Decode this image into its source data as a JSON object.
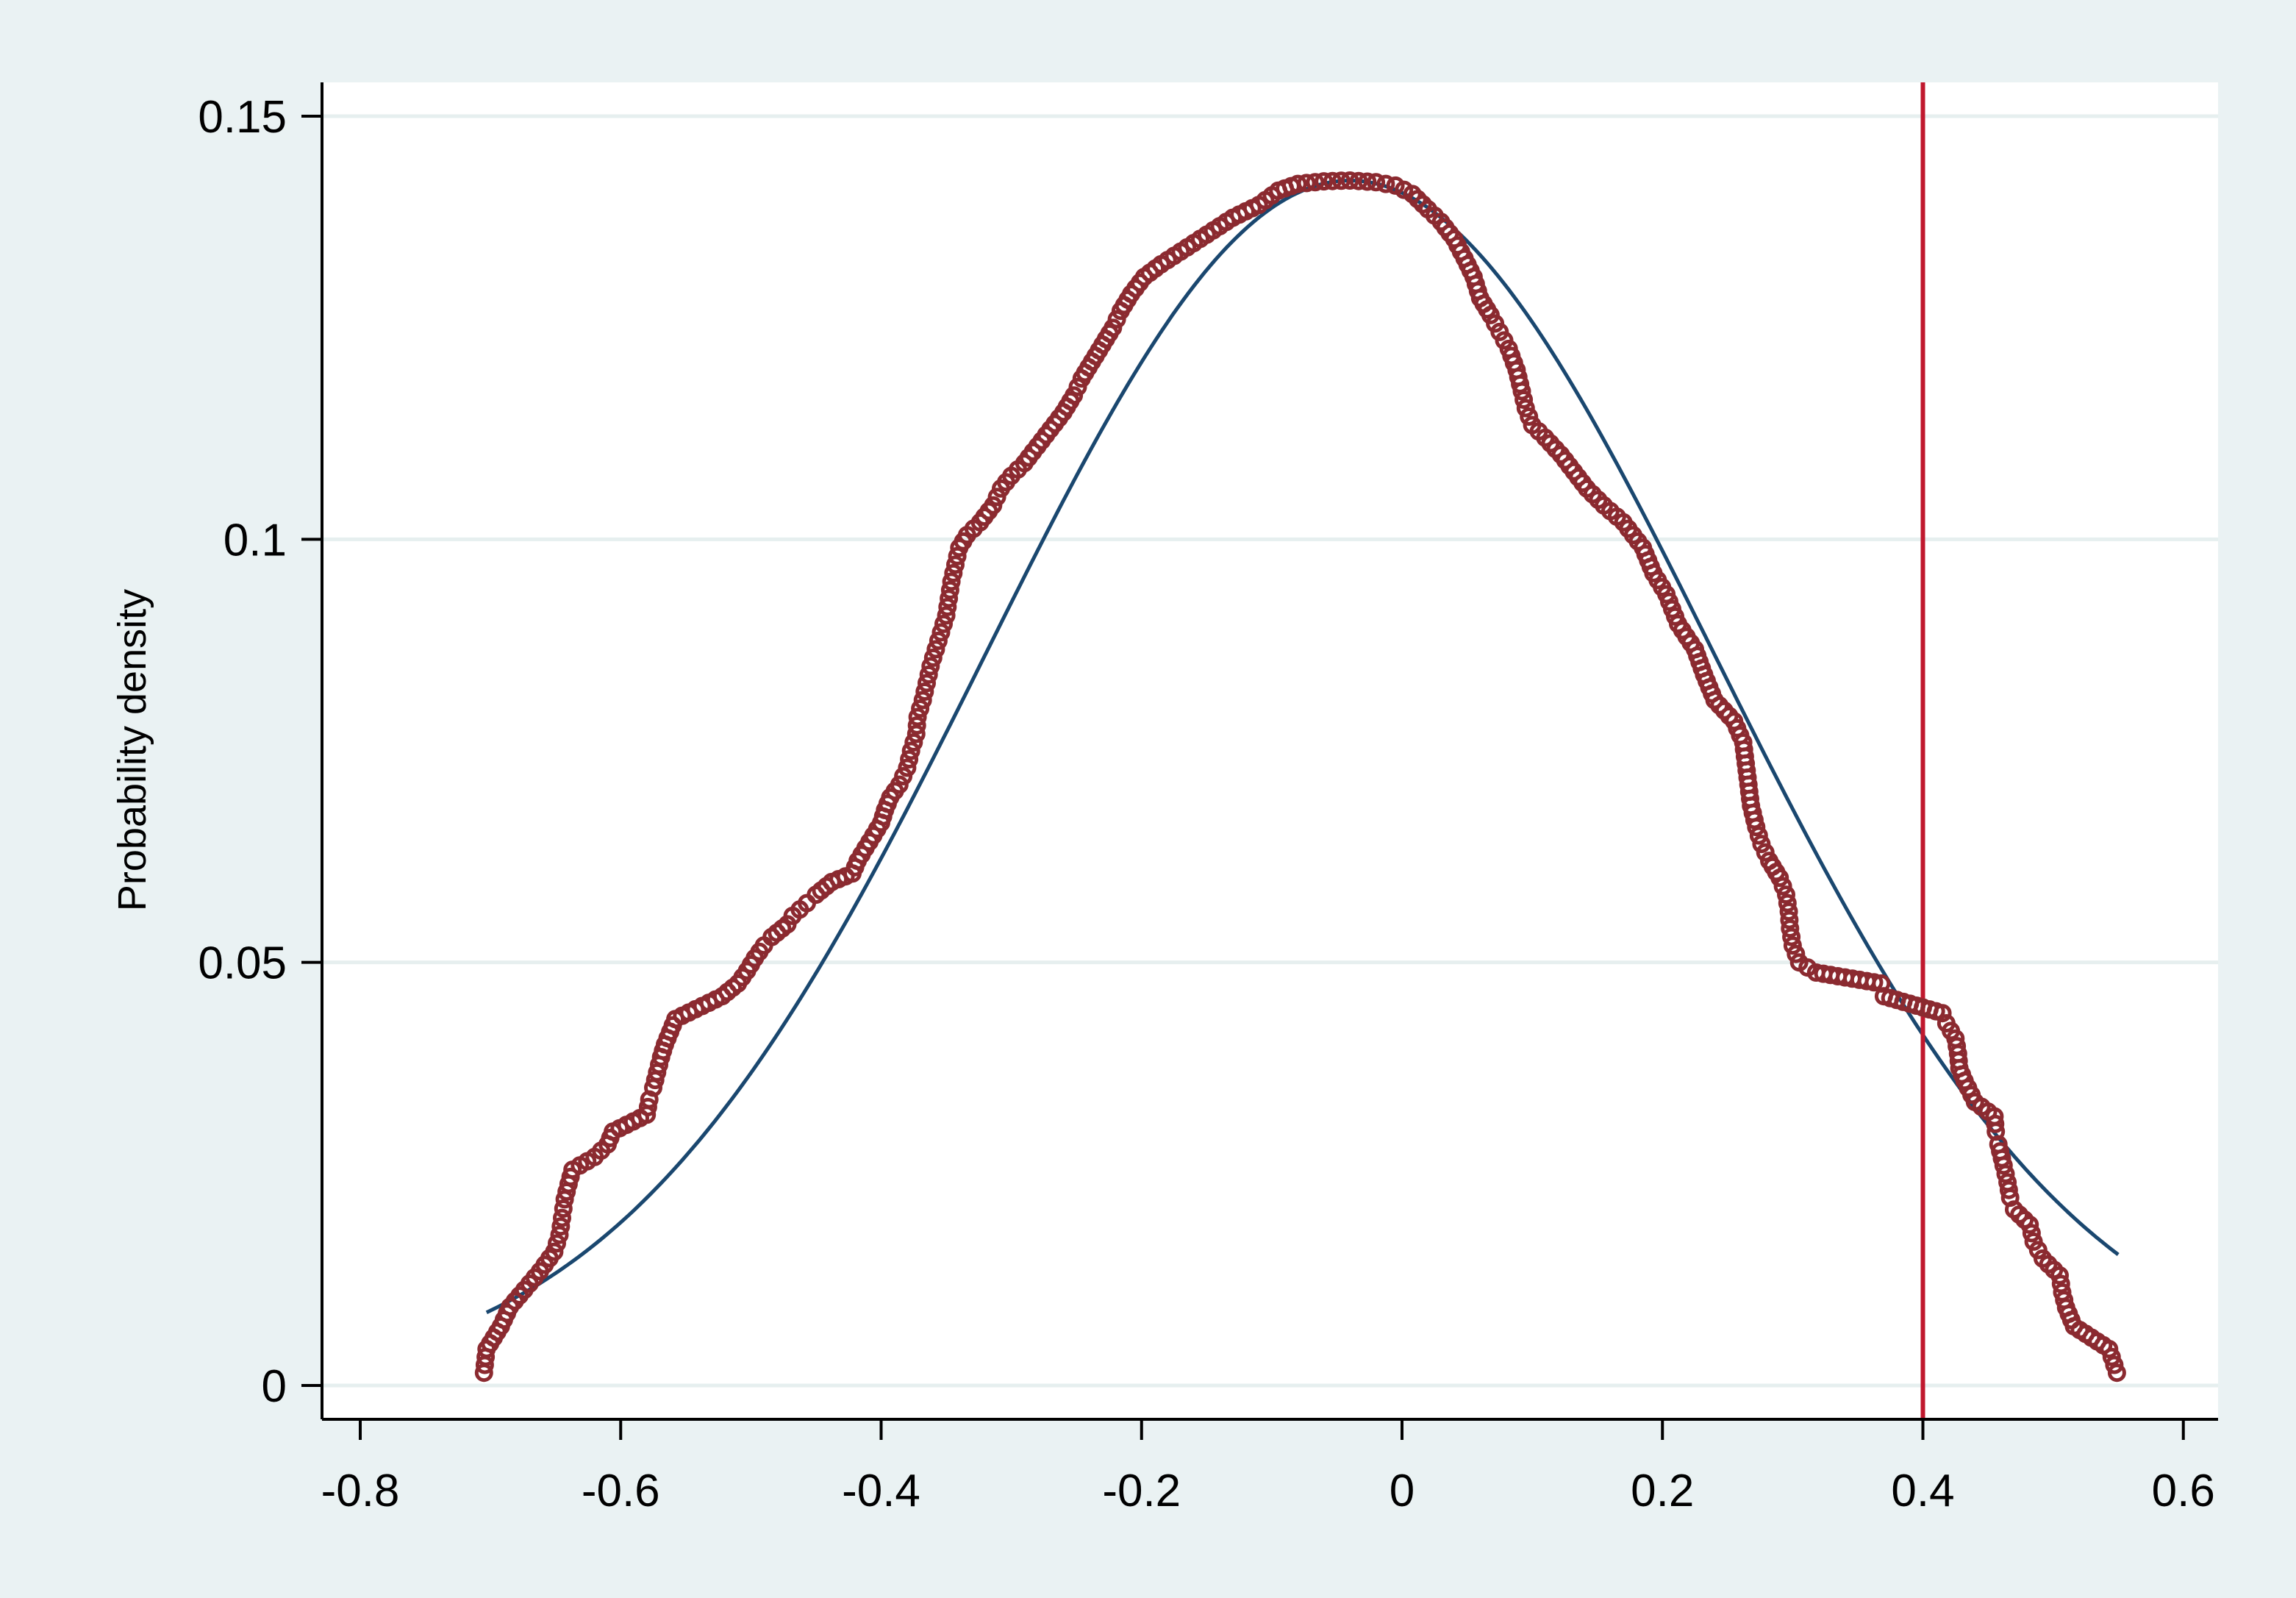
{
  "chart_data": {
    "type": "scatter",
    "title": "",
    "xlabel": "",
    "ylabel": "Probability density",
    "xlim": [
      -0.8,
      0.6
    ],
    "ylim": [
      0,
      0.15
    ],
    "x_ticks": [
      -0.8,
      -0.6,
      -0.4,
      -0.2,
      0,
      0.2,
      0.4,
      0.6
    ],
    "x_tick_labels": [
      "-0.8",
      "-0.6",
      "-0.4",
      "-0.2",
      "0",
      "0.2",
      "0.4",
      "0.6"
    ],
    "y_ticks": [
      0,
      0.05,
      0.1,
      0.15
    ],
    "y_tick_labels": [
      "0",
      "0.05",
      "0.1",
      "0.15"
    ],
    "grid": "horizontal",
    "legend": "none",
    "reference_line": {
      "x": 0.4,
      "color": "#c0182e"
    },
    "colors": {
      "outer_background": "#eaf2f3",
      "plot_background": "#ffffff",
      "grid": "#e6efef",
      "markers": "#8b2a30",
      "fit_curve": "#1a476f",
      "reference_line": "#c0182e"
    },
    "series": [
      {
        "type": "scatter-hollow",
        "points": [
          [
            -0.705,
            0.0015
          ],
          [
            -0.703,
            0.0043
          ],
          [
            -0.692,
            0.007
          ],
          [
            -0.685,
            0.0093
          ],
          [
            -0.674,
            0.0113
          ],
          [
            -0.662,
            0.0135
          ],
          [
            -0.651,
            0.0158
          ],
          [
            -0.647,
            0.0178
          ],
          [
            -0.645,
            0.0198
          ],
          [
            -0.643,
            0.022
          ],
          [
            -0.64,
            0.0238
          ],
          [
            -0.637,
            0.0255
          ],
          [
            -0.62,
            0.027
          ],
          [
            -0.61,
            0.0285
          ],
          [
            -0.606,
            0.03
          ],
          [
            -0.58,
            0.032
          ],
          [
            -0.578,
            0.0338
          ],
          [
            -0.575,
            0.0352
          ],
          [
            -0.572,
            0.037
          ],
          [
            -0.569,
            0.0388
          ],
          [
            -0.566,
            0.0403
          ],
          [
            -0.562,
            0.0418
          ],
          [
            -0.558,
            0.0433
          ],
          [
            -0.522,
            0.046
          ],
          [
            -0.51,
            0.0475
          ],
          [
            -0.503,
            0.049
          ],
          [
            -0.497,
            0.0505
          ],
          [
            -0.49,
            0.052
          ],
          [
            -0.484,
            0.053
          ],
          [
            -0.472,
            0.0545
          ],
          [
            -0.468,
            0.0555
          ],
          [
            -0.457,
            0.057
          ],
          [
            -0.45,
            0.058
          ],
          [
            -0.438,
            0.0595
          ],
          [
            -0.422,
            0.0605
          ],
          [
            -0.418,
            0.062
          ],
          [
            -0.412,
            0.0635
          ],
          [
            -0.406,
            0.065
          ],
          [
            -0.4,
            0.0665
          ],
          [
            -0.397,
            0.068
          ],
          [
            -0.393,
            0.0695
          ],
          [
            -0.386,
            0.071
          ],
          [
            -0.38,
            0.073
          ],
          [
            -0.377,
            0.075
          ],
          [
            -0.373,
            0.077
          ],
          [
            -0.372,
            0.079
          ],
          [
            -0.368,
            0.081
          ],
          [
            -0.365,
            0.083
          ],
          [
            -0.362,
            0.085
          ],
          [
            -0.358,
            0.087
          ],
          [
            -0.354,
            0.089
          ],
          [
            -0.35,
            0.091
          ],
          [
            -0.348,
            0.093
          ],
          [
            -0.346,
            0.095
          ],
          [
            -0.343,
            0.097
          ],
          [
            -0.34,
            0.099
          ],
          [
            -0.334,
            0.1005
          ],
          [
            -0.324,
            0.102
          ],
          [
            -0.314,
            0.104
          ],
          [
            -0.308,
            0.106
          ],
          [
            -0.3,
            0.1075
          ],
          [
            -0.29,
            0.109
          ],
          [
            -0.28,
            0.111
          ],
          [
            -0.27,
            0.113
          ],
          [
            -0.26,
            0.115
          ],
          [
            -0.252,
            0.117
          ],
          [
            -0.246,
            0.119
          ],
          [
            -0.238,
            0.121
          ],
          [
            -0.23,
            0.123
          ],
          [
            -0.222,
            0.125
          ],
          [
            -0.216,
            0.127
          ],
          [
            -0.208,
            0.129
          ],
          [
            -0.198,
            0.131
          ],
          [
            -0.185,
            0.1325
          ],
          [
            -0.17,
            0.134
          ],
          [
            -0.15,
            0.136
          ],
          [
            -0.13,
            0.138
          ],
          [
            -0.11,
            0.1395
          ],
          [
            -0.095,
            0.1412
          ],
          [
            -0.08,
            0.142
          ],
          [
            -0.06,
            0.1423
          ],
          [
            -0.04,
            0.1424
          ],
          [
            -0.02,
            0.1422
          ],
          [
            -0.005,
            0.1418
          ],
          [
            0.008,
            0.1408
          ],
          [
            0.02,
            0.139
          ],
          [
            0.03,
            0.1375
          ],
          [
            0.04,
            0.1355
          ],
          [
            0.048,
            0.1332
          ],
          [
            0.055,
            0.131
          ],
          [
            0.06,
            0.1285
          ],
          [
            0.068,
            0.1265
          ],
          [
            0.075,
            0.1245
          ],
          [
            0.082,
            0.1225
          ],
          [
            0.088,
            0.12
          ],
          [
            0.092,
            0.1175
          ],
          [
            0.095,
            0.1155
          ],
          [
            0.1,
            0.1135
          ],
          [
            0.11,
            0.112
          ],
          [
            0.122,
            0.11
          ],
          [
            0.132,
            0.108
          ],
          [
            0.142,
            0.106
          ],
          [
            0.155,
            0.104
          ],
          [
            0.17,
            0.102
          ],
          [
            0.185,
            0.099
          ],
          [
            0.193,
            0.096
          ],
          [
            0.203,
            0.0935
          ],
          [
            0.212,
            0.09
          ],
          [
            0.225,
            0.087
          ],
          [
            0.232,
            0.084
          ],
          [
            0.24,
            0.081
          ],
          [
            0.255,
            0.0785
          ],
          [
            0.262,
            0.076
          ],
          [
            0.264,
            0.0735
          ],
          [
            0.266,
            0.071
          ],
          [
            0.268,
            0.0685
          ],
          [
            0.272,
            0.066
          ],
          [
            0.276,
            0.064
          ],
          [
            0.282,
            0.062
          ],
          [
            0.29,
            0.06
          ],
          [
            0.295,
            0.058
          ],
          [
            0.297,
            0.056
          ],
          [
            0.298,
            0.054
          ],
          [
            0.3,
            0.052
          ],
          [
            0.305,
            0.05
          ],
          [
            0.318,
            0.0488
          ],
          [
            0.368,
            0.0475
          ],
          [
            0.37,
            0.046
          ],
          [
            0.415,
            0.044
          ],
          [
            0.418,
            0.0428
          ],
          [
            0.425,
            0.041
          ],
          [
            0.427,
            0.0392
          ],
          [
            0.428,
            0.0375
          ],
          [
            0.432,
            0.036
          ],
          [
            0.44,
            0.0335
          ],
          [
            0.455,
            0.0318
          ],
          [
            0.456,
            0.03
          ],
          [
            0.458,
            0.0285
          ],
          [
            0.462,
            0.026
          ],
          [
            0.465,
            0.024
          ],
          [
            0.467,
            0.0222
          ],
          [
            0.47,
            0.0208
          ],
          [
            0.482,
            0.019
          ],
          [
            0.485,
            0.017
          ],
          [
            0.492,
            0.015
          ],
          [
            0.505,
            0.013
          ],
          [
            0.507,
            0.011
          ],
          [
            0.51,
            0.0092
          ],
          [
            0.516,
            0.007
          ],
          [
            0.543,
            0.0043
          ],
          [
            0.549,
            0.0015
          ]
        ]
      },
      {
        "type": "line",
        "curve": "normal",
        "mean": -0.04,
        "sd": 0.28,
        "x_range": [
          -0.703,
          0.55
        ]
      }
    ]
  }
}
